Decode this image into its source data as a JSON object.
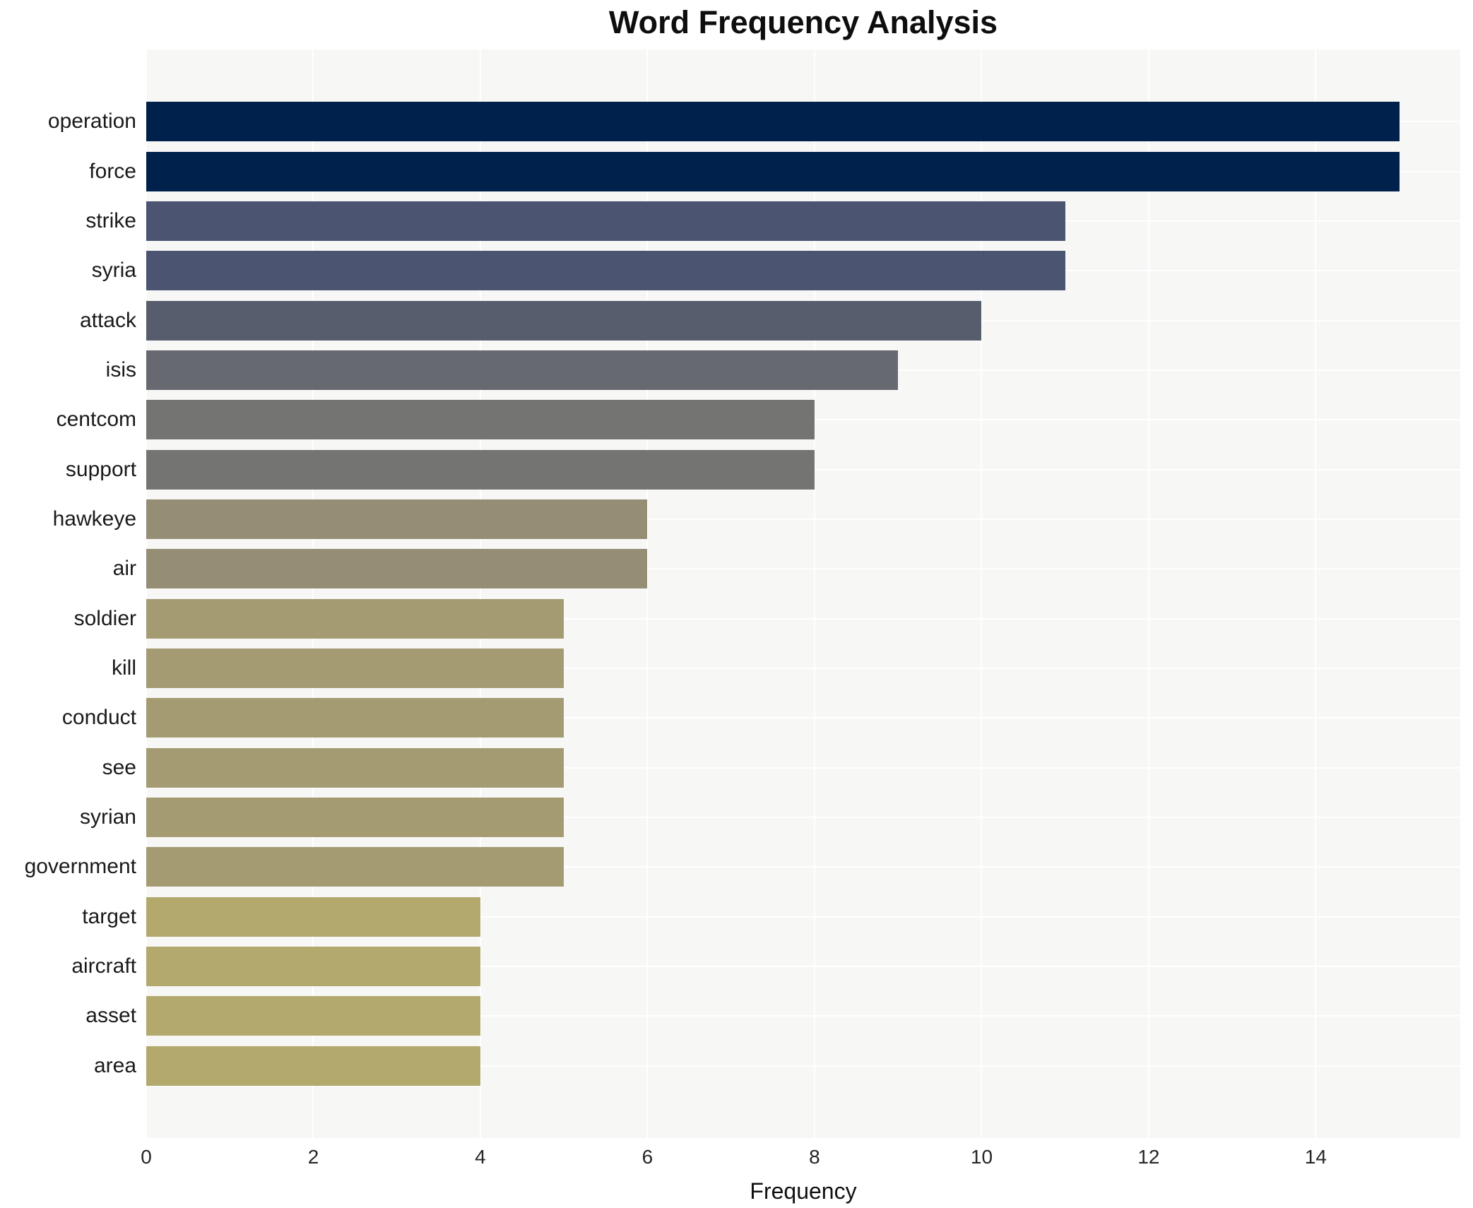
{
  "chart_data": {
    "type": "bar",
    "orientation": "horizontal",
    "title": "Word Frequency Analysis",
    "xlabel": "Frequency",
    "ylabel": "",
    "categories": [
      "operation",
      "force",
      "strike",
      "syria",
      "attack",
      "isis",
      "centcom",
      "support",
      "hawkeye",
      "air",
      "soldier",
      "kill",
      "conduct",
      "see",
      "syrian",
      "government",
      "target",
      "aircraft",
      "asset",
      "area"
    ],
    "values": [
      15,
      15,
      11,
      11,
      10,
      9,
      8,
      8,
      6,
      6,
      5,
      5,
      5,
      5,
      5,
      5,
      4,
      4,
      4,
      4
    ],
    "bar_colors": [
      "#01214d",
      "#01214d",
      "#4b5470",
      "#4b5470",
      "#575d6d",
      "#66696f",
      "#747473",
      "#747473",
      "#958e74",
      "#958e74",
      "#a49b72",
      "#a49b72",
      "#a49b72",
      "#a49b72",
      "#a49b72",
      "#a49b72",
      "#b3a96c",
      "#b3a96c",
      "#b3a96c",
      "#b3a96c"
    ],
    "x_ticks": [
      0,
      2,
      4,
      6,
      8,
      10,
      12,
      14
    ],
    "xlim": [
      0,
      15.73
    ],
    "grid": "white-on-lightgray",
    "legend": "none",
    "plot_bg_color": "#f7f7f6",
    "grid_color": "#ffffff",
    "title_color": "#0e0e0e",
    "tick_label_color": "#262626"
  }
}
